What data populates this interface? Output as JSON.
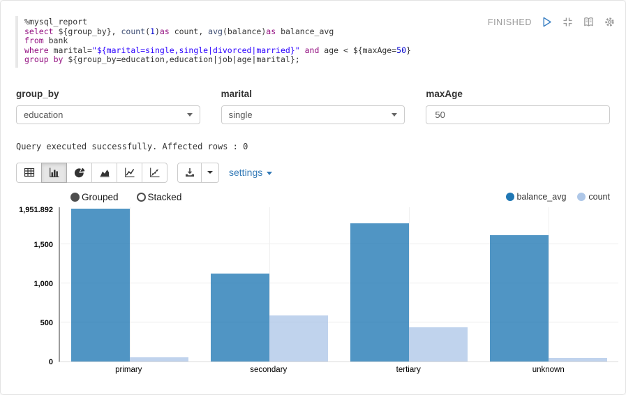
{
  "paragraph": {
    "status": "FINISHED",
    "editor_lines": [
      [
        {
          "t": "%mysql_report",
          "c": "pl"
        }
      ],
      [
        {
          "t": "select",
          "c": "kw"
        },
        {
          "t": " ${group_by}, ",
          "c": "pl"
        },
        {
          "t": "count",
          "c": "fn"
        },
        {
          "t": "(",
          "c": "pl"
        },
        {
          "t": "1",
          "c": "num"
        },
        {
          "t": ")",
          "c": "pl"
        },
        {
          "t": "as",
          "c": "kw"
        },
        {
          "t": " count, ",
          "c": "pl"
        },
        {
          "t": "avg",
          "c": "fn"
        },
        {
          "t": "(",
          "c": "pl"
        },
        {
          "t": "balance",
          "c": "pl"
        },
        {
          "t": ")",
          "c": "pl"
        },
        {
          "t": "as",
          "c": "kw"
        },
        {
          "t": " balance_avg",
          "c": "pl"
        }
      ],
      [
        {
          "t": "from",
          "c": "kw"
        },
        {
          "t": " bank",
          "c": "pl"
        }
      ],
      [
        {
          "t": "where",
          "c": "kw"
        },
        {
          "t": " marital=",
          "c": "pl"
        },
        {
          "t": "\"${marital=single,single|divorced|married}\"",
          "c": "str"
        },
        {
          "t": " ",
          "c": "pl"
        },
        {
          "t": "and",
          "c": "kw"
        },
        {
          "t": " age < ${maxAge=",
          "c": "pl"
        },
        {
          "t": "50",
          "c": "num"
        },
        {
          "t": "}",
          "c": "pl"
        }
      ],
      [
        {
          "t": "group",
          "c": "kw"
        },
        {
          "t": " ",
          "c": "pl"
        },
        {
          "t": "by",
          "c": "kw"
        },
        {
          "t": " ${group_by=education,education|job|age|marital};",
          "c": "pl"
        }
      ]
    ]
  },
  "forms": {
    "fields": [
      {
        "label": "group_by",
        "type": "select",
        "value": "education"
      },
      {
        "label": "marital",
        "type": "select",
        "value": "single"
      },
      {
        "label": "maxAge",
        "type": "input",
        "value": "50"
      }
    ]
  },
  "result_message": "Query executed successfully. Affected rows : 0",
  "toolbar": {
    "chart_types": [
      "table",
      "bar",
      "pie",
      "area",
      "line",
      "scatter"
    ],
    "active_type": "bar",
    "settings_label": "settings"
  },
  "icons": {
    "header": [
      "play-icon",
      "compress-icon",
      "book-icon",
      "gear-icon"
    ],
    "chart_types": [
      "table-icon",
      "bar-chart-icon",
      "pie-chart-icon",
      "area-chart-icon",
      "line-chart-icon",
      "scatter-chart-icon"
    ],
    "download": "download-icon",
    "caret": "caret-down-icon"
  },
  "colors": {
    "accent_blue": "#337ab7",
    "status_gray": "#999999",
    "series_balance_avg": "#1f77b4",
    "series_count": "#aec7e8"
  },
  "chart_data": {
    "type": "bar",
    "mode": "Grouped",
    "mode_options": [
      "Grouped",
      "Stacked"
    ],
    "categories": [
      "primary",
      "secondary",
      "tertiary",
      "unknown"
    ],
    "series": [
      {
        "name": "balance_avg",
        "color": "#1f77b4",
        "values": [
          1951.892,
          1126,
          1765,
          1611
        ]
      },
      {
        "name": "count",
        "color": "#aec7e8",
        "values": [
          56,
          585,
          435,
          42
        ]
      }
    ],
    "y_ticks": [
      0,
      500,
      1000,
      1500
    ],
    "y_tick_labels": [
      "0",
      "500",
      "1,000",
      "1,500"
    ],
    "y_max": 1951.892,
    "y_max_label": "1,951.892",
    "ylim": [
      0,
      1951.892
    ],
    "grid": true,
    "legend_position": "top-right",
    "xlabel": "",
    "ylabel": ""
  }
}
